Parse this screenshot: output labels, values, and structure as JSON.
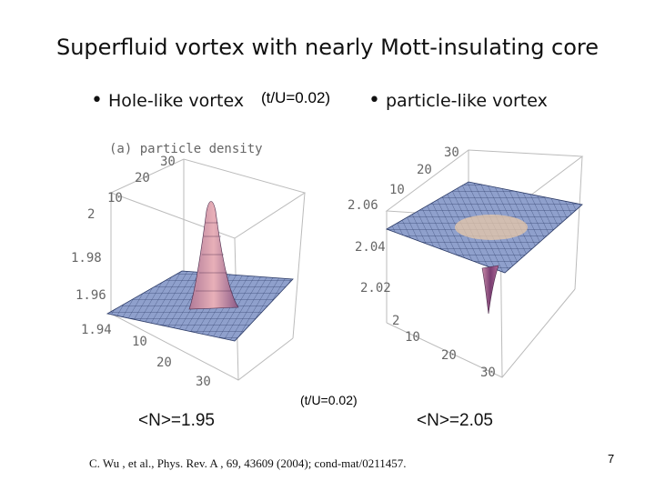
{
  "slide": {
    "title": "Superfluid vortex with nearly Mott-insulating core",
    "bullet_left": "Hole-like vortex",
    "param_top": "(t/U=0.02)",
    "bullet_right": "particle-like vortex",
    "param_mid": "(t/U=0.02)",
    "expect_left": "<N>=1.95",
    "expect_right": "<N>=2.05",
    "citation": "C. Wu , et al., Phys. Rev. A , 69, 43609 (2004); cond-mat/0211457.",
    "page_number": "7"
  },
  "left_plot": {
    "caption": "(a) particle density",
    "z_ticks": [
      "2",
      "1.98",
      "1.96",
      "1.94"
    ],
    "back_ticks": [
      "30",
      "20",
      "10"
    ],
    "front_ticks": [
      "10",
      "20",
      "30"
    ]
  },
  "right_plot": {
    "z_ticks": [
      "2.06",
      "2.04",
      "2.02",
      "2"
    ],
    "back_ticks": [
      "30",
      "20",
      "10"
    ],
    "front_ticks": [
      "10",
      "20",
      "30"
    ]
  }
}
